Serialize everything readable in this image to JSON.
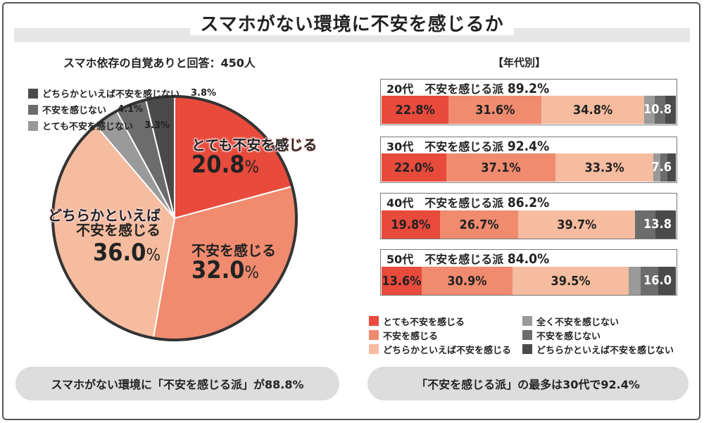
{
  "title": "スマホがない環境に不安を感じるか",
  "colors": {
    "very_anxious": "#e84a3c",
    "anxious": "#f08b6f",
    "somewhat_anxious": "#f6bc9f",
    "not_at_all": "#9a9a9a",
    "not_anxious": "#6c6c6c",
    "somewhat_not": "#4a4a4a"
  },
  "pie": {
    "heading": "スマホ依存の自覚ありと回答：450人",
    "percent_sign": "%",
    "legend": [
      {
        "label": "どちらかといえば不安を感じない",
        "value": "3.8%"
      },
      {
        "label": "不安を感じない",
        "value": "4.1%"
      },
      {
        "label": "とても不安を感じない",
        "value": "3.3%"
      }
    ],
    "labels": {
      "very": {
        "text": "とても不安を感じる",
        "value": "20.8"
      },
      "anxious": {
        "text": "不安を感じる",
        "value": "32.0"
      },
      "somewhat_line1": "どちらかといえば",
      "somewhat_line2": "不安を感じる",
      "somewhat_value": "36.0"
    }
  },
  "chart_data": [
    {
      "type": "pie",
      "title": "スマホ依存の自覚ありと回答：450人",
      "slices": [
        {
          "label": "とても不安を感じる",
          "value": 20.8
        },
        {
          "label": "不安を感じる",
          "value": 32.0
        },
        {
          "label": "どちらかといえば不安を感じる",
          "value": 36.0
        },
        {
          "label": "とても不安を感じない",
          "value": 3.3
        },
        {
          "label": "不安を感じない",
          "value": 4.1
        },
        {
          "label": "どちらかといえば不安を感じない",
          "value": 3.8
        }
      ]
    },
    {
      "type": "bar",
      "title": "【年代別】",
      "orientation": "horizontal-stacked",
      "categories": [
        "20代",
        "30代",
        "40代",
        "50代"
      ],
      "summary_prefix": "不安を感じる派",
      "summary_values": [
        "89.2%",
        "92.4%",
        "86.2%",
        "84.0%"
      ],
      "series": [
        {
          "name": "とても不安を感じる",
          "values": [
            22.8,
            22.0,
            19.8,
            13.6
          ]
        },
        {
          "name": "不安を感じる",
          "values": [
            31.6,
            37.1,
            26.7,
            30.9
          ]
        },
        {
          "name": "どちらかといえば不安を感じる",
          "values": [
            34.8,
            33.3,
            39.7,
            39.5
          ]
        },
        {
          "name": "全く不安を感じない",
          "values": [
            3.6,
            2.3,
            0.0,
            4.0
          ]
        },
        {
          "name": "不安を感じない",
          "values": [
            3.6,
            2.5,
            6.9,
            6.0
          ]
        },
        {
          "name": "どちらかといえば不安を感じない",
          "values": [
            3.6,
            2.8,
            6.9,
            6.0
          ]
        }
      ],
      "not_anxious_totals": [
        "10.8",
        "7.6",
        "13.8",
        "16.0"
      ],
      "labels": [
        [
          "22.8%",
          "31.6%",
          "34.8%"
        ],
        [
          "22.0%",
          "37.1%",
          "33.3%"
        ],
        [
          "19.8%",
          "26.7%",
          "39.7%"
        ],
        [
          "13.6%",
          "30.9%",
          "39.5%"
        ]
      ]
    }
  ],
  "bar_legend": {
    "left": [
      "とても不安を感じる",
      "不安を感じる",
      "どちらかといえば不安を感じる"
    ],
    "right": [
      "全く不安を感じない",
      "不安を感じない",
      "どちらかといえば不安を感じない"
    ]
  },
  "summaries": {
    "left": "スマホがない環境に「不安を感じる派」が88.8%",
    "right": "「不安を感じる派」の最多は30代で92.4%"
  }
}
